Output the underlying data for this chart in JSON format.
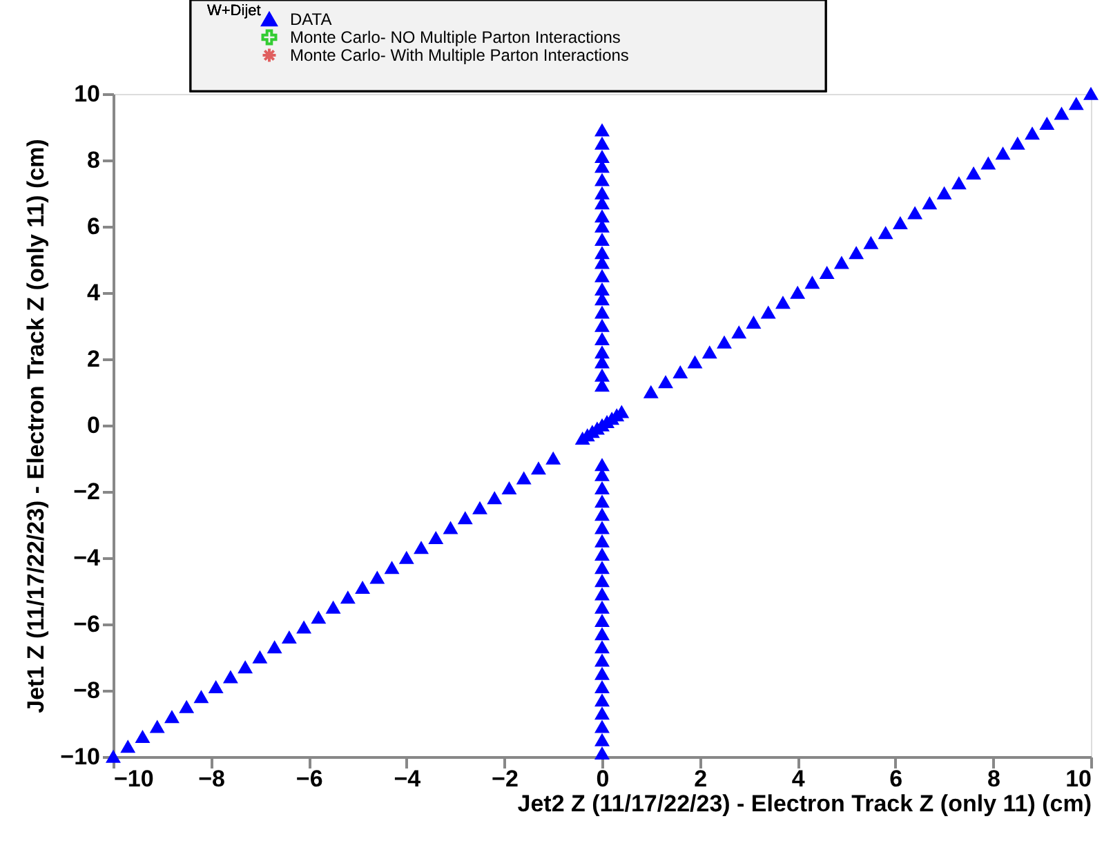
{
  "chart_data": {
    "type": "scatter",
    "xlabel": "Jet2 Z (11/17/22/23) - Electron Track Z (only 11) (cm)",
    "ylabel": "Jet1 Z (11/17/22/23) - Electron Track Z (only 11) (cm)",
    "legend_title": "W+Dijet",
    "xlim": [
      -10,
      10
    ],
    "ylim": [
      -10,
      10
    ],
    "xticks": [
      -10,
      -8,
      -6,
      -4,
      -2,
      0,
      2,
      4,
      6,
      8,
      10
    ],
    "yticks": [
      -10,
      -8,
      -6,
      -4,
      -2,
      0,
      2,
      4,
      6,
      8,
      10
    ],
    "grid": false,
    "legend": "top",
    "series": [
      {
        "name": "DATA",
        "color": "#0000ff",
        "marker": "triangle",
        "x": [
          -10,
          -9.7,
          -9.4,
          -9.1,
          -8.8,
          -8.5,
          -8.2,
          -7.9,
          -7.6,
          -7.3,
          -7.0,
          -6.7,
          -6.4,
          -6.1,
          -5.8,
          -5.5,
          -5.2,
          -4.9,
          -4.6,
          -4.3,
          -4.0,
          -3.7,
          -3.4,
          -3.1,
          -2.8,
          -2.5,
          -2.2,
          -1.9,
          -1.6,
          -1.3,
          -1.0,
          -0.4,
          -0.3,
          -0.2,
          -0.1,
          0,
          0.1,
          0.2,
          0.3,
          0.4,
          1.0,
          1.3,
          1.6,
          1.9,
          2.2,
          2.5,
          2.8,
          3.1,
          3.4,
          3.7,
          4.0,
          4.3,
          4.6,
          4.9,
          5.2,
          5.5,
          5.8,
          6.1,
          6.4,
          6.7,
          7.0,
          7.3,
          7.6,
          7.9,
          8.2,
          8.5,
          8.8,
          9.1,
          9.4,
          9.7,
          10,
          0,
          0,
          0,
          0,
          0,
          0,
          0,
          0,
          0,
          0,
          0,
          0,
          0,
          0,
          0,
          0,
          0,
          0,
          0,
          0,
          0,
          0,
          0,
          0,
          0,
          0,
          0,
          0,
          0,
          0,
          0,
          0,
          0,
          0,
          0,
          0,
          0,
          0,
          0,
          0,
          0,
          0,
          0,
          0,
          0
        ],
        "values": [
          -10,
          -9.7,
          -9.4,
          -9.1,
          -8.8,
          -8.5,
          -8.2,
          -7.9,
          -7.6,
          -7.3,
          -7.0,
          -6.7,
          -6.4,
          -6.1,
          -5.8,
          -5.5,
          -5.2,
          -4.9,
          -4.6,
          -4.3,
          -4.0,
          -3.7,
          -3.4,
          -3.1,
          -2.8,
          -2.5,
          -2.2,
          -1.9,
          -1.6,
          -1.3,
          -1.0,
          -0.4,
          -0.3,
          -0.2,
          -0.1,
          0,
          0.1,
          0.2,
          0.3,
          0.4,
          1.0,
          1.3,
          1.6,
          1.9,
          2.2,
          2.5,
          2.8,
          3.1,
          3.4,
          3.7,
          4.0,
          4.3,
          4.6,
          4.9,
          5.2,
          5.5,
          5.8,
          6.1,
          6.4,
          6.7,
          7.0,
          7.3,
          7.6,
          7.9,
          8.2,
          8.5,
          8.8,
          9.1,
          9.4,
          9.7,
          10,
          8.9,
          8.5,
          8.1,
          7.8,
          7.4,
          7.0,
          6.7,
          6.3,
          6.0,
          5.6,
          5.2,
          4.9,
          4.5,
          4.1,
          3.8,
          3.4,
          3.0,
          2.6,
          2.2,
          1.9,
          1.5,
          1.2,
          -1.2,
          -1.5,
          -1.9,
          -2.3,
          -2.7,
          -3.1,
          -3.5,
          -3.9,
          -4.3,
          -4.7,
          -5.1,
          -5.5,
          -5.9,
          -6.3,
          -6.7,
          -7.1,
          -7.5,
          -7.9,
          -8.3,
          -8.7,
          -9.1,
          -9.5,
          -9.9
        ]
      },
      {
        "name": "Monte Carlo- NO Multiple Parton Interactions",
        "color": "#33cc33",
        "marker": "cross"
      },
      {
        "name": "Monte Carlo- With Multiple Parton Interactions",
        "color": "#e06060",
        "marker": "star"
      }
    ]
  }
}
